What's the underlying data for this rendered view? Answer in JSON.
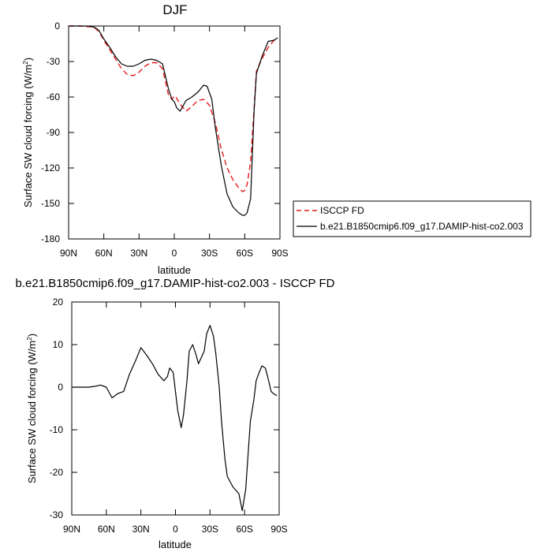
{
  "chart_data": [
    {
      "type": "line",
      "title": "DJF",
      "xlabel": "latitude",
      "ylabel": "Surface SW cloud forcing (W/m",
      "ylabel_sup": "2",
      "ylabel_close": ")",
      "xlim": [
        90,
        -90
      ],
      "ylim": [
        -180,
        0
      ],
      "xticks": [
        90,
        60,
        30,
        0,
        -30,
        -60,
        -90
      ],
      "xtick_labels": [
        "90N",
        "60N",
        "30N",
        "0",
        "30S",
        "60S",
        "90S"
      ],
      "yticks": [
        0,
        -30,
        -60,
        -90,
        -120,
        -150,
        -180
      ],
      "ytick_labels": [
        "0",
        "-30",
        "-60",
        "-90",
        "-120",
        "-150",
        "-180"
      ],
      "grid": false,
      "legend_position": "right",
      "series": [
        {
          "name": "ISCCP FD",
          "color": "#e8191c",
          "dash": "dashed",
          "x": [
            90,
            80,
            75,
            70,
            67,
            64,
            60,
            55,
            50,
            45,
            40,
            35,
            30,
            25,
            20,
            15,
            10,
            5,
            2,
            0,
            -2,
            -5,
            -10,
            -15,
            -20,
            -25,
            -30,
            -35,
            -40,
            -45,
            -50,
            -55,
            -58,
            -60,
            -62,
            -65,
            -68,
            -70,
            -75,
            -80,
            -85,
            -88
          ],
          "y": [
            0,
            0,
            -0.3,
            -0.8,
            -2,
            -5,
            -12,
            -20,
            -28,
            -36,
            -41,
            -42,
            -39,
            -34,
            -31,
            -31,
            -36,
            -58,
            -62,
            -59,
            -61,
            -66,
            -72,
            -68,
            -63,
            -62,
            -67,
            -82,
            -104,
            -120,
            -130,
            -137,
            -140,
            -139,
            -134,
            -115,
            -70,
            -38,
            -27,
            -18,
            -12,
            -10
          ]
        },
        {
          "name": "b.e21.B1850cmip6.f09_g17.DAMIP-hist-co2.003",
          "color": "#000000",
          "dash": "solid",
          "x": [
            90,
            80,
            75,
            70,
            67,
            64,
            60,
            55,
            50,
            45,
            40,
            35,
            30,
            25,
            20,
            15,
            10,
            5,
            2,
            0,
            -2,
            -5,
            -10,
            -15,
            -20,
            -25,
            -28,
            -32,
            -35,
            -40,
            -45,
            -50,
            -55,
            -58,
            -60,
            -62,
            -65,
            -68,
            -70,
            -75,
            -80,
            -85,
            -88
          ],
          "y": [
            0,
            0,
            0,
            -0.5,
            -1.5,
            -4,
            -11,
            -18,
            -26,
            -32,
            -34,
            -34,
            -32,
            -29,
            -28,
            -29,
            -32,
            -53,
            -62,
            -64,
            -69,
            -72,
            -63,
            -60,
            -56,
            -50,
            -51,
            -62,
            -86,
            -118,
            -142,
            -153,
            -158,
            -160,
            -160,
            -158,
            -146,
            -72,
            -40,
            -25,
            -13,
            -12,
            -10
          ]
        }
      ]
    },
    {
      "type": "line",
      "title": "b.e21.B1850cmip6.f09_g17.DAMIP-hist-co2.003 - ISCCP FD",
      "xlabel": "latitude",
      "ylabel": "Surface SW cloud forcing (W/m",
      "ylabel_sup": "2",
      "ylabel_close": ")",
      "xlim": [
        90,
        -90
      ],
      "ylim": [
        -30,
        20
      ],
      "xticks": [
        90,
        60,
        30,
        0,
        -30,
        -60,
        -90
      ],
      "xtick_labels": [
        "90N",
        "60N",
        "30N",
        "0",
        "30S",
        "60S",
        "90S"
      ],
      "yticks": [
        20,
        10,
        0,
        -10,
        -20,
        -30
      ],
      "ytick_labels": [
        "20",
        "10",
        "0",
        "-10",
        "-20",
        "-30"
      ],
      "grid": false,
      "series": [
        {
          "color": "#000000",
          "dash": "solid",
          "x": [
            90,
            80,
            75,
            70,
            65,
            60,
            55,
            50,
            45,
            40,
            35,
            30,
            25,
            20,
            15,
            10,
            7,
            5,
            2,
            0,
            -2,
            -5,
            -7,
            -10,
            -12,
            -15,
            -18,
            -20,
            -25,
            -27,
            -30,
            -33,
            -35,
            -38,
            -40,
            -43,
            -45,
            -50,
            -55,
            -58,
            -61,
            -63,
            -65,
            -68,
            -70,
            -72,
            -75,
            -78,
            -80,
            -83,
            -85,
            -88
          ],
          "y": [
            0,
            0,
            0,
            0.2,
            0.5,
            0,
            -2.5,
            -1.5,
            -1,
            3,
            6,
            9.3,
            7.5,
            5.5,
            3,
            1.5,
            2.5,
            4.5,
            3.5,
            -1,
            -5.5,
            -9.5,
            -6.5,
            1.5,
            8.5,
            10,
            7.5,
            5.5,
            8.5,
            12.5,
            14.5,
            12,
            8,
            0,
            -8,
            -17,
            -21,
            -23.5,
            -25,
            -29,
            -24,
            -16,
            -8,
            -3,
            1.5,
            3,
            5,
            4.5,
            2.5,
            -1,
            -1.5,
            -2
          ]
        }
      ]
    }
  ]
}
